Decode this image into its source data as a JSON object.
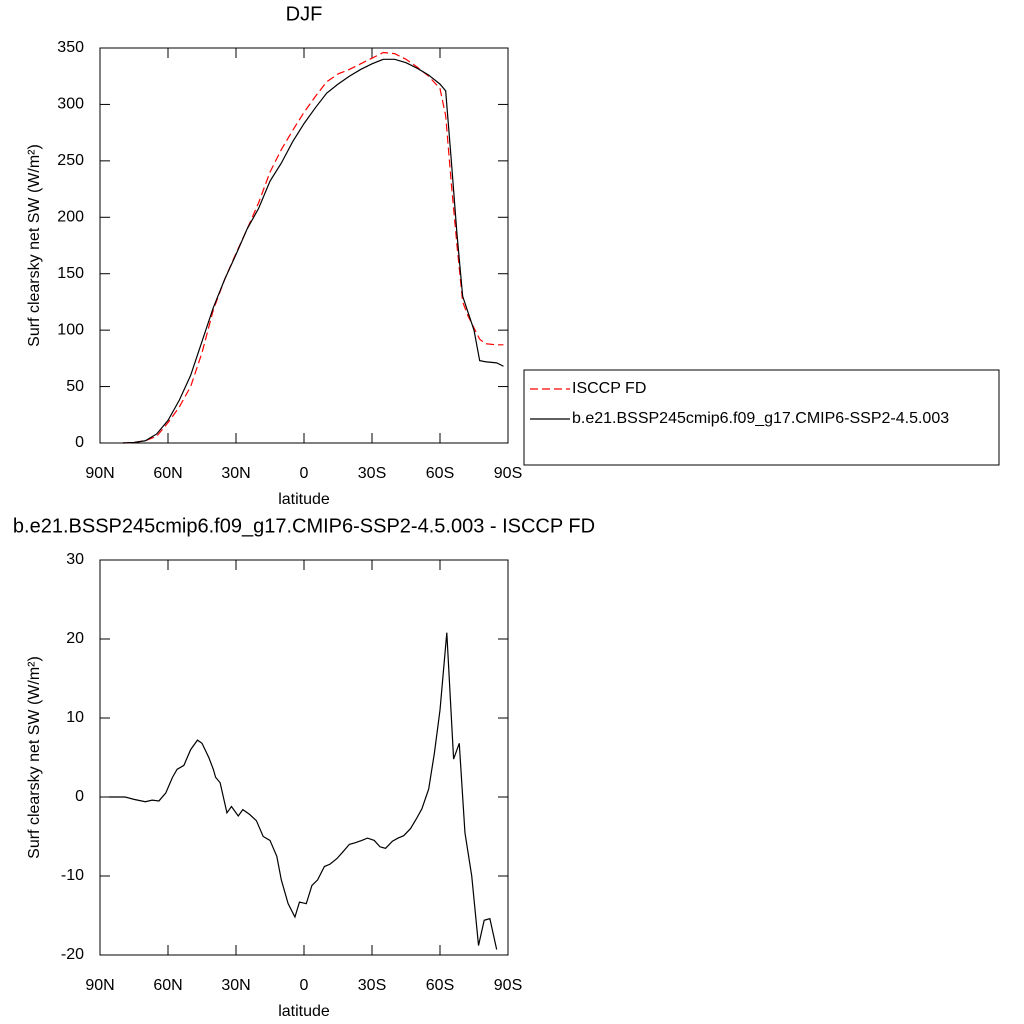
{
  "chart_data": [
    {
      "type": "line",
      "title": "DJF",
      "x_label": "latitude",
      "y_label": "Surf clearsky net SW (W/m²)",
      "x": [
        80,
        75,
        70,
        65,
        60,
        55,
        50,
        45,
        40,
        35,
        30,
        25,
        20,
        15,
        10,
        5,
        0,
        -5,
        -10,
        -15,
        -20,
        -25,
        -30,
        -35,
        -40,
        -45,
        -50,
        -55,
        -60,
        -62.5,
        -65,
        -67.5,
        -70,
        -72.5,
        -75,
        -77.5,
        -80,
        -85,
        -88
      ],
      "series": [
        {
          "name": "ISCCP FD",
          "color": "#ff0000",
          "line_style": "dashed",
          "values": [
            0,
            0.5,
            2,
            6,
            18,
            32,
            50,
            80,
            118,
            145,
            168,
            190,
            213,
            240,
            260,
            277,
            293,
            307,
            320,
            327,
            331,
            336,
            341,
            346,
            345,
            340,
            333,
            325,
            314,
            290,
            230,
            175,
            125,
            112,
            102,
            92,
            88,
            87,
            87
          ]
        },
        {
          "name": "b.e21.BSSP245cmip6.f09_g17.CMIP6-SSP2-4.5.003",
          "color": "#000000",
          "line_style": "solid",
          "values": [
            0,
            0.5,
            2,
            8,
            20,
            38,
            60,
            90,
            120,
            145,
            167,
            190,
            208,
            232,
            248,
            267,
            283,
            297,
            310,
            318,
            325,
            331,
            336,
            340,
            340,
            337,
            332,
            326,
            318,
            312,
            250,
            185,
            130,
            115,
            100,
            73,
            72,
            71,
            68
          ]
        }
      ],
      "xlim": [
        90,
        -90
      ],
      "xticks": [
        {
          "value": 90,
          "label": "90N"
        },
        {
          "value": 60,
          "label": "60N"
        },
        {
          "value": 30,
          "label": "30N"
        },
        0,
        {
          "value": -30,
          "label": "30S"
        },
        {
          "value": -60,
          "label": "60S"
        },
        {
          "value": -90,
          "label": "90S"
        }
      ],
      "ylim": [
        0,
        350
      ],
      "yticks": [
        0,
        50,
        100,
        150,
        200,
        250,
        300,
        350
      ],
      "legend": "right"
    },
    {
      "type": "line",
      "title": "b.e21.BSSP245cmip6.f09_g17.CMIP6-SSP2-4.5.003 - ISCCP FD",
      "x_label": "latitude",
      "y_label": "Surf clearsky net SW (W/m²)",
      "x": [
        86,
        79,
        75,
        70,
        67,
        64,
        61,
        58,
        56,
        53,
        50,
        47,
        45,
        42,
        40,
        39,
        37,
        34,
        32,
        29,
        27,
        24,
        21,
        18,
        15,
        12,
        10,
        7,
        4,
        2,
        -1,
        -3.5,
        -6,
        -9,
        -11.5,
        -14.5,
        -17,
        -20,
        -22.5,
        -25.5,
        -28,
        -31,
        -33.5,
        -36,
        -39,
        -41.5,
        -44,
        -47,
        -49.5,
        -52,
        -55,
        -57.5,
        -60,
        -63,
        -66,
        -68.5,
        -71,
        -74,
        -77,
        -79.5,
        -82,
        -85
      ],
      "series": [
        {
          "color": "#000000",
          "line_style": "solid",
          "values": [
            0,
            0,
            -0.3,
            -0.6,
            -0.4,
            -0.5,
            0.5,
            2.5,
            3.5,
            4,
            6,
            7.2,
            6.8,
            5,
            3.5,
            2.5,
            1.8,
            -2,
            -1.2,
            -2.4,
            -1.6,
            -2.2,
            -3,
            -5,
            -5.5,
            -7.5,
            -10.5,
            -13.5,
            -15.2,
            -13.3,
            -13.5,
            -11.2,
            -10.5,
            -8.8,
            -8.5,
            -7.8,
            -7,
            -6,
            -5.8,
            -5.5,
            -5.2,
            -5.5,
            -6.3,
            -6.5,
            -5.6,
            -5.2,
            -4.9,
            -4,
            -2.8,
            -1.5,
            1,
            5.5,
            11,
            20.8,
            4.8,
            6.8,
            -4.5,
            -10,
            -18.8,
            -15.6,
            -15.4,
            -19.3
          ]
        }
      ],
      "xlim": [
        90,
        -90
      ],
      "xticks": [
        {
          "value": 90,
          "label": "90N"
        },
        {
          "value": 60,
          "label": "60N"
        },
        {
          "value": 30,
          "label": "30N"
        },
        0,
        {
          "value": -30,
          "label": "30S"
        },
        {
          "value": -60,
          "label": "60S"
        },
        {
          "value": -90,
          "label": "90S"
        }
      ],
      "ylim": [
        -20,
        30
      ],
      "yticks": [
        -20,
        -10,
        0,
        10,
        20,
        30
      ]
    }
  ]
}
